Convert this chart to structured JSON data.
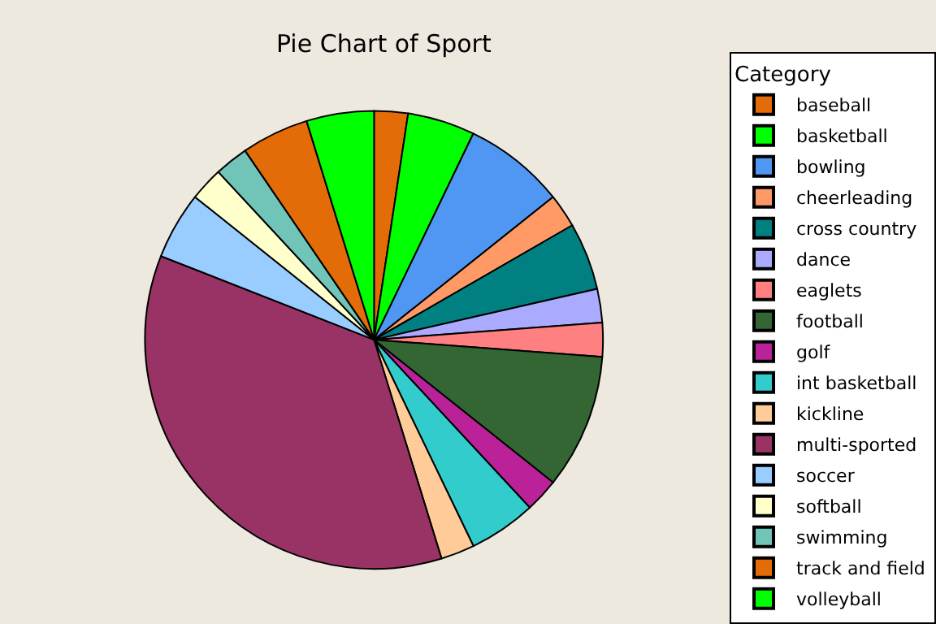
{
  "chart_data": {
    "type": "pie",
    "title": "Pie Chart of Sport",
    "legend_title": "Category",
    "legend": "right",
    "categories": [
      "baseball",
      "basketball",
      "bowling",
      "cheerleading",
      "cross country",
      "dance",
      "eaglets",
      "football",
      "golf",
      "int basketball",
      "kickline",
      "multi-sported",
      "soccer",
      "softball",
      "swimming",
      "track and field",
      "volleyball"
    ],
    "values": [
      2.38,
      4.76,
      7.14,
      2.38,
      4.76,
      2.38,
      2.38,
      9.52,
      2.38,
      4.76,
      2.38,
      35.71,
      4.76,
      2.38,
      2.38,
      4.76,
      4.76
    ],
    "colors": [
      "#e36c09",
      "#00ff00",
      "#4f97f2",
      "#ff9966",
      "#008080",
      "#aaaaff",
      "#ff8080",
      "#336633",
      "#bb2299",
      "#33cccc",
      "#ffcc99",
      "#993366",
      "#99ccff",
      "#ffffcc",
      "#70c4b8",
      "#e36c09",
      "#00ff00"
    ]
  }
}
